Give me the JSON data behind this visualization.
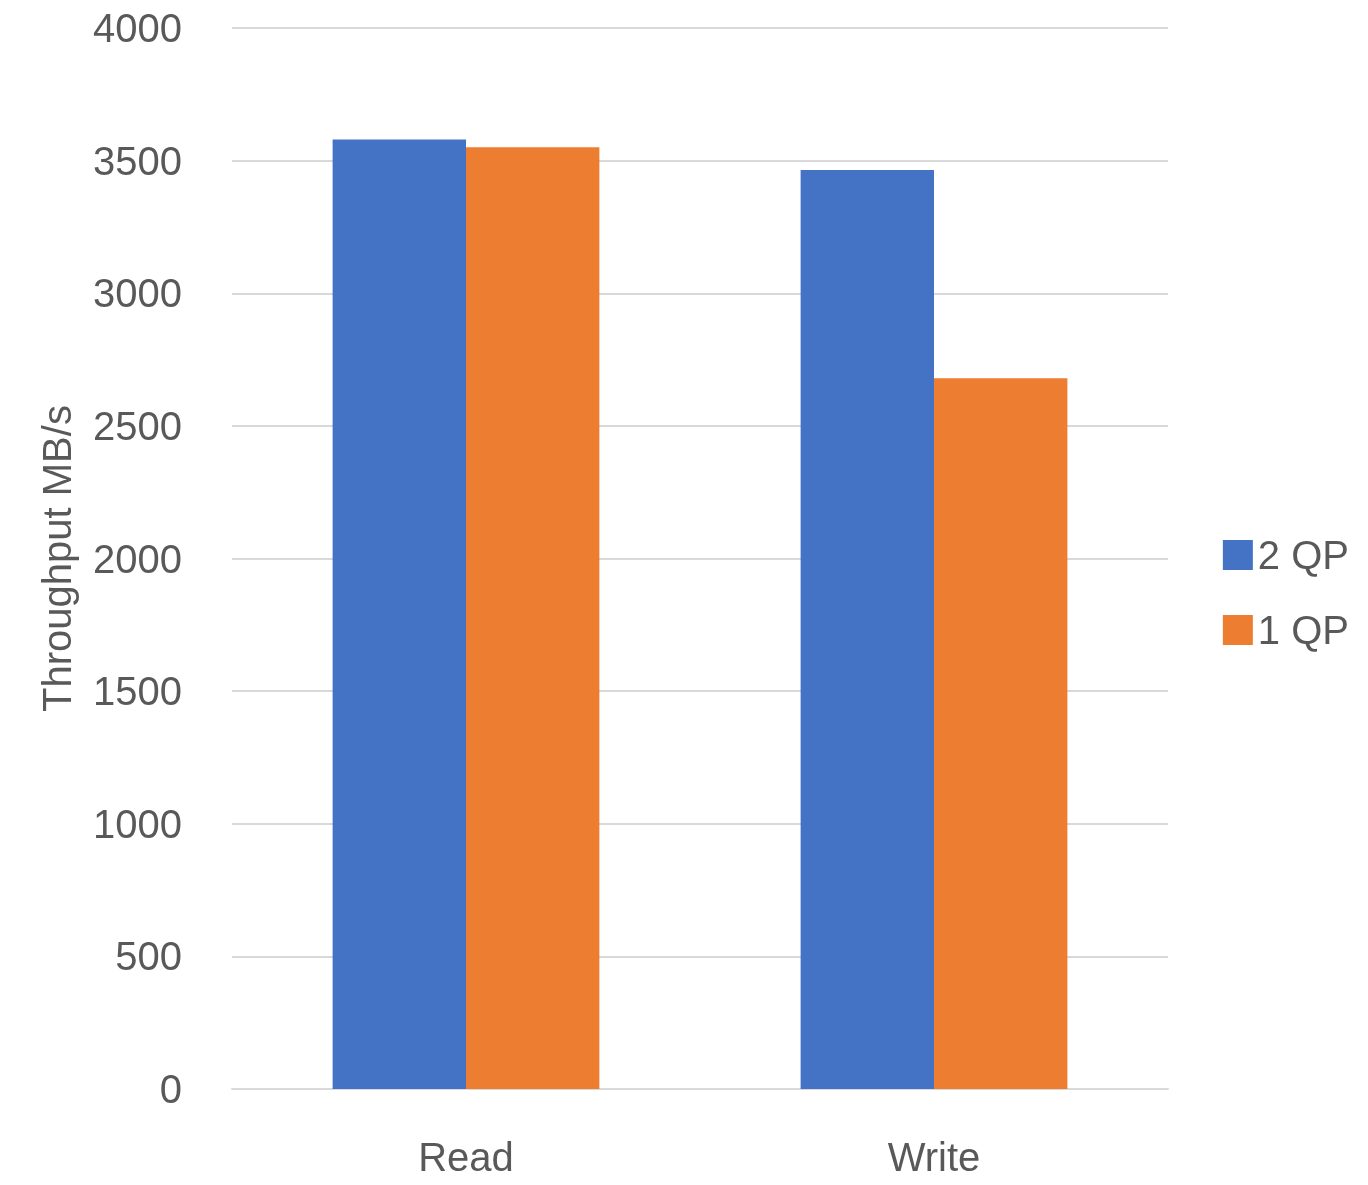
{
  "chart_data": {
    "type": "bar",
    "ylabel": "Throughput MB/s",
    "categories": [
      "Read",
      "Write"
    ],
    "series": [
      {
        "name": "2 QP",
        "color": "#4472c4",
        "values": [
          3580,
          3465
        ]
      },
      {
        "name": "1 QP",
        "color": "#ed7d31",
        "values": [
          3550,
          2680
        ]
      }
    ],
    "ylim": [
      0,
      4000
    ],
    "yticks": [
      0,
      500,
      1000,
      1500,
      2000,
      2500,
      3000,
      3500,
      4000
    ],
    "grid": "y",
    "legend": "right"
  }
}
